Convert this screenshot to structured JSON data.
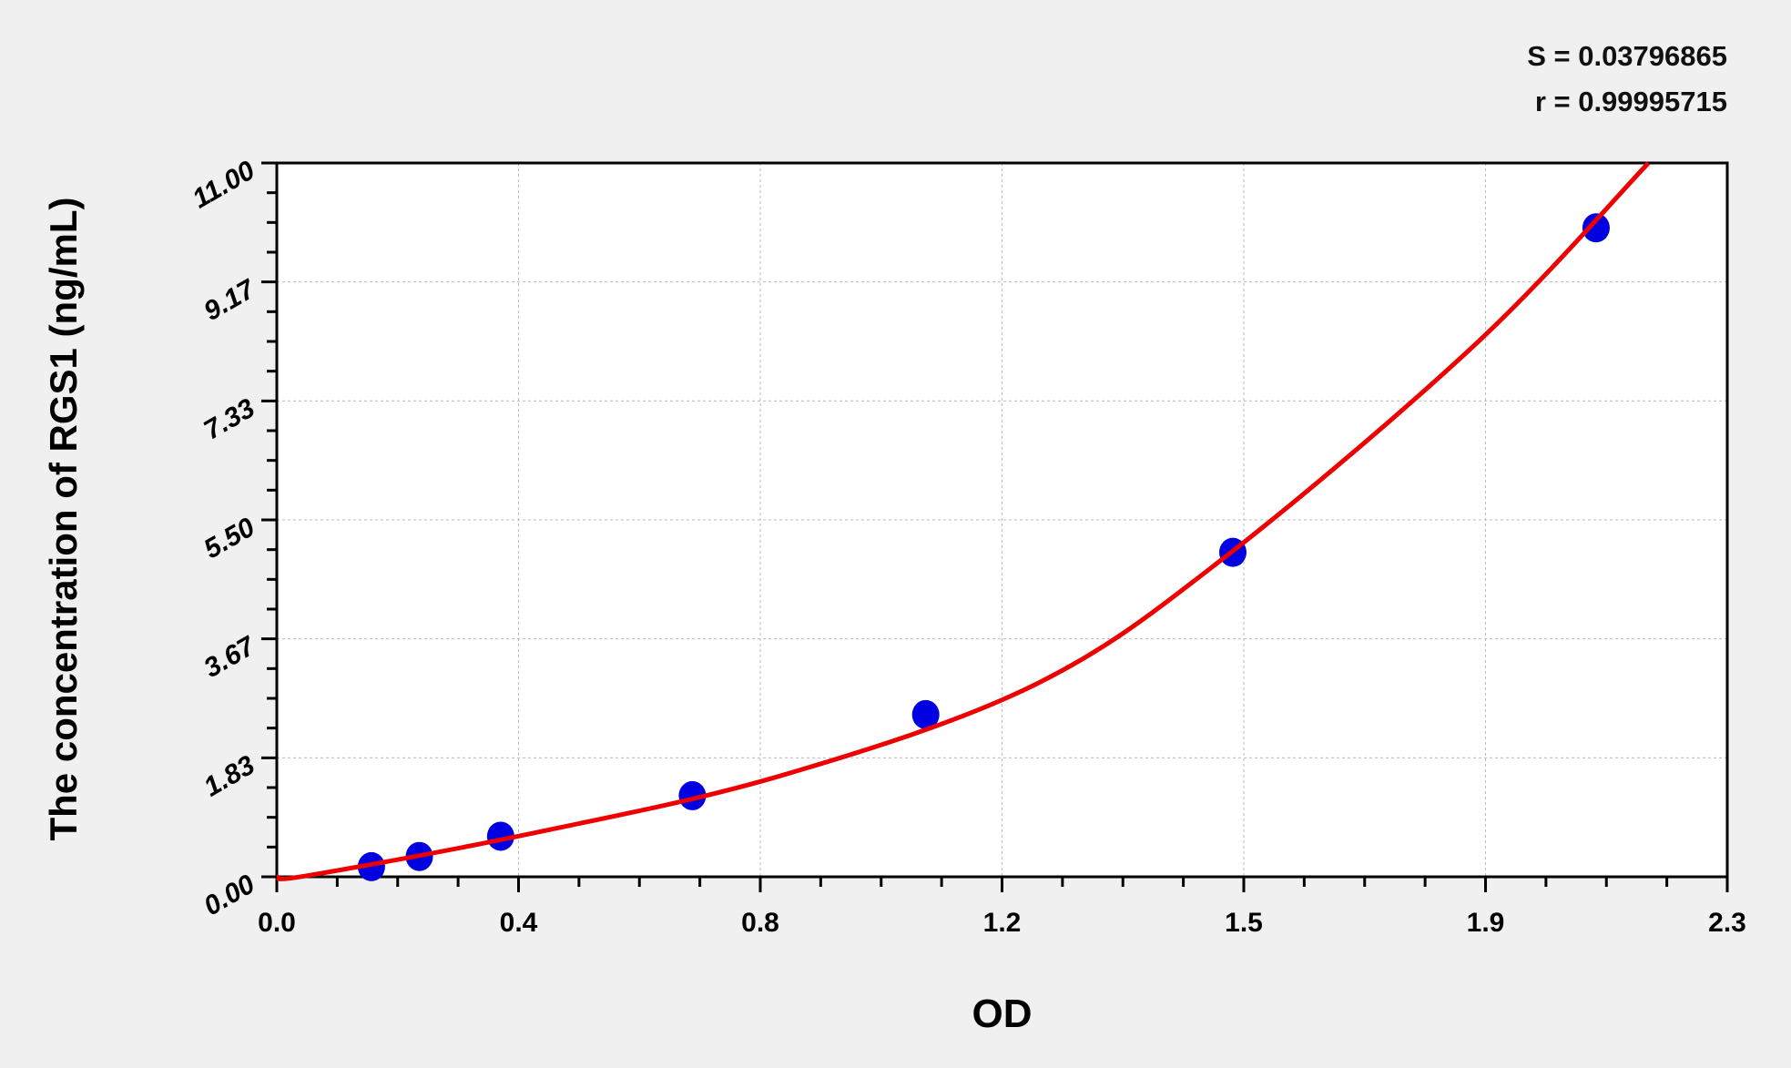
{
  "chart_data": {
    "type": "scatter",
    "title": "",
    "xlabel": "OD",
    "ylabel": "The concentration of RGS1 (ng/mL)",
    "xlim": [
      0,
      2.3
    ],
    "ylim": [
      0,
      11
    ],
    "x_tick_labels": [
      "0.0",
      "0.4",
      "0.8",
      "1.2",
      "1.5",
      "1.9",
      "2.3"
    ],
    "y_tick_labels": [
      "0.00",
      "1.83",
      "3.67",
      "5.50",
      "7.33",
      "9.17",
      "11.00"
    ],
    "grid": true,
    "points": {
      "x": [
        0.15,
        0.226,
        0.355,
        0.659,
        1.029,
        1.516,
        2.092
      ],
      "y": [
        0.156,
        0.313,
        0.625,
        1.25,
        2.5,
        5,
        10
      ]
    },
    "fit_curve": {
      "x": [
        0,
        0.05,
        0.4,
        0.8,
        1.2,
        1.5,
        1.9,
        2.175
      ],
      "y": [
        0,
        0.02,
        0.66,
        1.56,
        2.95,
        4.9,
        8.2,
        11
      ]
    },
    "annotations": {
      "s": "S = 0.03796865",
      "r": "r = 0.99995715"
    },
    "colors": {
      "points": "#0000e0",
      "curve": "#ee0000",
      "background": "#f0f0f0",
      "plot": "#ffffff"
    }
  }
}
